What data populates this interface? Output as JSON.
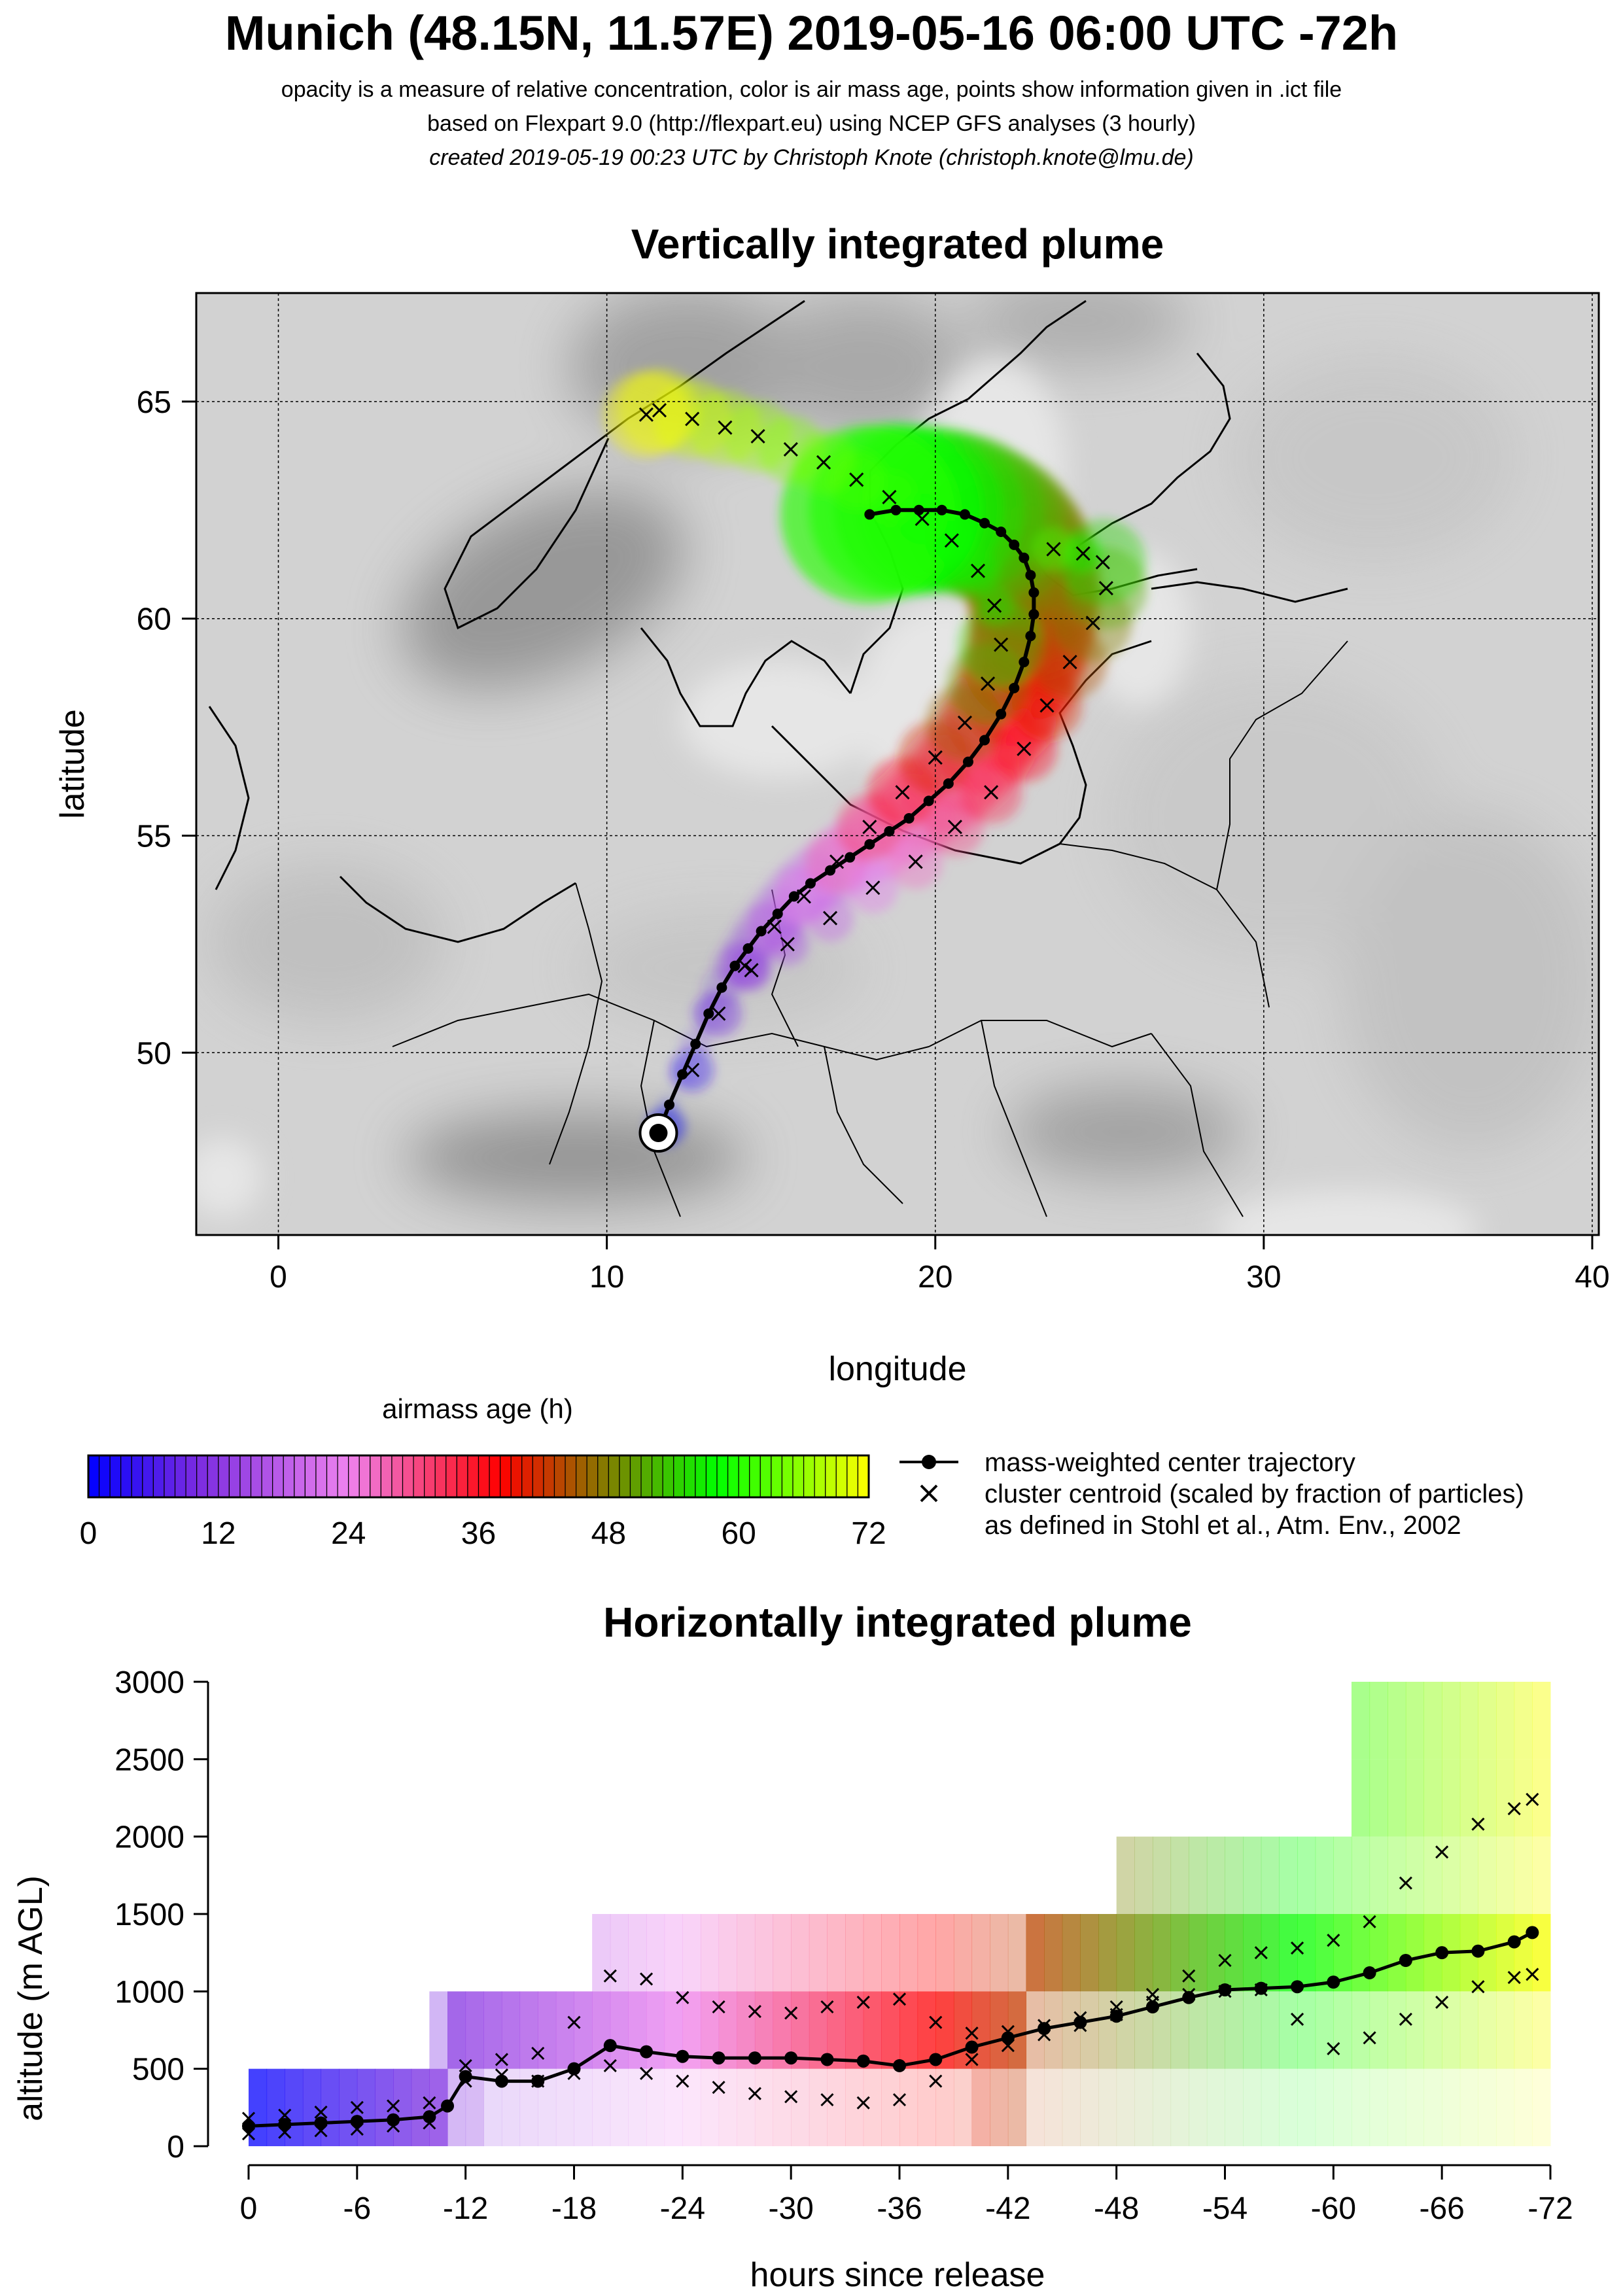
{
  "header": {
    "title": "Munich (48.15N, 11.57E) 2019-05-16 06:00 UTC -72h",
    "subtitle1": "opacity is a measure of relative concentration, color is air mass age, points show information given in .ict file",
    "subtitle2": "based on Flexpart 9.0 (http://flexpart.eu) using NCEP GFS analyses (3 hourly)",
    "subtitle3": "created 2019-05-19 00:23 UTC by Christoph Knote (christoph.knote@lmu.de)"
  },
  "colors": {
    "age_scale": [
      "#0000ff",
      "#7a2be0",
      "#ee82ee",
      "#ff0000",
      "#00ff00",
      "#ffff00"
    ],
    "ground_gray": "#d2d2d2",
    "terrain_gray": "#9a9a9a"
  },
  "chart_data": [
    {
      "type": "scatter",
      "panel": "map",
      "title": "Vertically integrated plume",
      "xlabel": "longitude",
      "ylabel": "latitude",
      "xlim": [
        -2.5,
        40.2
      ],
      "ylim": [
        45.8,
        67.5
      ],
      "xticks": [
        0,
        10,
        20,
        30,
        40
      ],
      "yticks": [
        50,
        55,
        60,
        65
      ],
      "grid": true,
      "release_point": {
        "lon": 11.57,
        "lat": 48.15
      },
      "series": [
        {
          "name": "mass-weighted center trajectory",
          "lon": [
            11.57,
            11.9,
            12.3,
            12.7,
            13.1,
            13.5,
            13.9,
            14.3,
            14.7,
            15.2,
            15.7,
            16.2,
            16.8,
            17.4,
            18.0,
            18.6,
            19.2,
            19.8,
            20.4,
            21.0,
            21.5,
            22.0,
            22.4,
            22.7,
            22.9,
            23.0,
            23.0,
            22.9,
            22.7,
            22.4,
            22.0,
            21.5,
            20.9,
            20.2,
            19.5,
            18.8,
            18.0
          ],
          "lat": [
            48.15,
            48.8,
            49.5,
            50.2,
            50.9,
            51.5,
            52.0,
            52.4,
            52.8,
            53.2,
            53.6,
            53.9,
            54.2,
            54.5,
            54.8,
            55.1,
            55.4,
            55.8,
            56.2,
            56.7,
            57.2,
            57.8,
            58.4,
            59.0,
            59.6,
            60.1,
            60.6,
            61.0,
            61.4,
            61.7,
            62.0,
            62.2,
            62.4,
            62.5,
            62.5,
            62.5,
            62.4
          ]
        },
        {
          "name": "cluster centroid (scaled by fraction of particles)",
          "lon": [
            11.8,
            12.6,
            13.4,
            14.2,
            15.1,
            16.0,
            17.0,
            18.0,
            19.0,
            20.0,
            20.9,
            21.6,
            22.0,
            21.8,
            21.3,
            20.5,
            19.6,
            18.6,
            17.6,
            16.6,
            15.6,
            14.6,
            13.6,
            12.6,
            11.6,
            11.2,
            14.4,
            15.5,
            16.8,
            18.1,
            19.4,
            20.6,
            21.7,
            22.7,
            23.4,
            24.1,
            24.8,
            25.2,
            25.1,
            24.5,
            23.6
          ],
          "lat": [
            48.3,
            49.6,
            50.9,
            52.0,
            52.9,
            53.6,
            54.4,
            55.2,
            56.0,
            56.8,
            57.6,
            58.5,
            59.4,
            60.3,
            61.1,
            61.8,
            62.3,
            62.8,
            63.2,
            63.6,
            63.9,
            64.2,
            64.4,
            64.6,
            64.8,
            64.7,
            51.9,
            52.5,
            53.1,
            53.8,
            54.4,
            55.2,
            56.0,
            57.0,
            58.0,
            59.0,
            59.9,
            60.7,
            61.3,
            61.5,
            61.6
          ]
        }
      ]
    },
    {
      "type": "line",
      "panel": "colorbar",
      "title": "airmass age (h)",
      "ticks": [
        0,
        12,
        24,
        36,
        48,
        60,
        72
      ],
      "legend": [
        "mass-weighted center trajectory",
        "cluster centroid (scaled by fraction of particles)",
        "as defined in Stohl et al., Atm. Env., 2002"
      ]
    },
    {
      "type": "scatter",
      "panel": "profile",
      "title": "Horizontally integrated plume",
      "xlabel": "hours since release",
      "ylabel": "altitude (m AGL)",
      "xlim": [
        0,
        -72
      ],
      "ylim": [
        0,
        3000
      ],
      "xticks": [
        0,
        -6,
        -12,
        -18,
        -24,
        -30,
        -36,
        -42,
        -48,
        -54,
        -60,
        -66,
        -72
      ],
      "xtick_labels": [
        "0",
        "-6",
        "-12",
        "-18",
        "-24",
        "-30",
        "-36",
        "-42",
        "-48",
        "-54",
        "-60",
        "-66",
        "-72"
      ],
      "yticks": [
        0,
        500,
        1000,
        1500,
        2000,
        2500,
        3000
      ],
      "grid": false,
      "series": [
        {
          "name": "mass-weighted center trajectory",
          "x": [
            0,
            -2,
            -4,
            -6,
            -8,
            -10,
            -11,
            -12,
            -14,
            -16,
            -18,
            -20,
            -22,
            -24,
            -26,
            -28,
            -30,
            -32,
            -34,
            -36,
            -38,
            -40,
            -42,
            -44,
            -46,
            -48,
            -50,
            -52,
            -54,
            -56,
            -58,
            -60,
            -62,
            -64,
            -66,
            -68,
            -70,
            -71
          ],
          "y": [
            130,
            140,
            150,
            160,
            170,
            190,
            260,
            450,
            420,
            420,
            500,
            650,
            610,
            580,
            570,
            570,
            570,
            560,
            550,
            520,
            560,
            640,
            700,
            760,
            800,
            840,
            900,
            960,
            1010,
            1020,
            1030,
            1060,
            1120,
            1200,
            1250,
            1260,
            1320,
            1380
          ]
        },
        {
          "name": "cluster centroid (scaled by fraction of particles)",
          "x": [
            0,
            -2,
            -4,
            -6,
            -8,
            -10,
            -12,
            -14,
            -16,
            -18,
            -20,
            -22,
            -24,
            -26,
            -28,
            -30,
            -32,
            -34,
            -36,
            -38,
            -40,
            -42,
            -44,
            -46,
            -48,
            -50,
            -52,
            -54,
            -56,
            -58,
            -60,
            -62,
            -64,
            -66,
            -68,
            -70,
            -71
          ],
          "y": [
            80,
            90,
            100,
            110,
            130,
            150,
            420,
            460,
            420,
            470,
            520,
            470,
            420,
            380,
            340,
            320,
            300,
            280,
            300,
            420,
            560,
            650,
            720,
            780,
            850,
            930,
            980,
            1000,
            1010,
            820,
            630,
            700,
            820,
            930,
            1030,
            1090,
            1110
          ]
        },
        {
          "name": "cluster centroid (scaled by fraction of particles)",
          "x": [
            0,
            -2,
            -4,
            -6,
            -8,
            -10,
            -12,
            -14,
            -16,
            -18,
            -20,
            -22,
            -24,
            -26,
            -28,
            -30,
            -32,
            -34,
            -36,
            -38,
            -40,
            -42,
            -44,
            -46,
            -48,
            -50,
            -52,
            -54,
            -56,
            -58,
            -60,
            -62,
            -64,
            -66,
            -68,
            -70,
            -71
          ],
          "y": [
            180,
            200,
            220,
            250,
            260,
            280,
            520,
            560,
            600,
            800,
            1100,
            1080,
            960,
            900,
            870,
            860,
            900,
            930,
            950,
            800,
            730,
            740,
            780,
            830,
            900,
            980,
            1100,
            1200,
            1250,
            1280,
            1330,
            1450,
            1700,
            1900,
            2080,
            2180,
            2240
          ]
        }
      ]
    }
  ]
}
